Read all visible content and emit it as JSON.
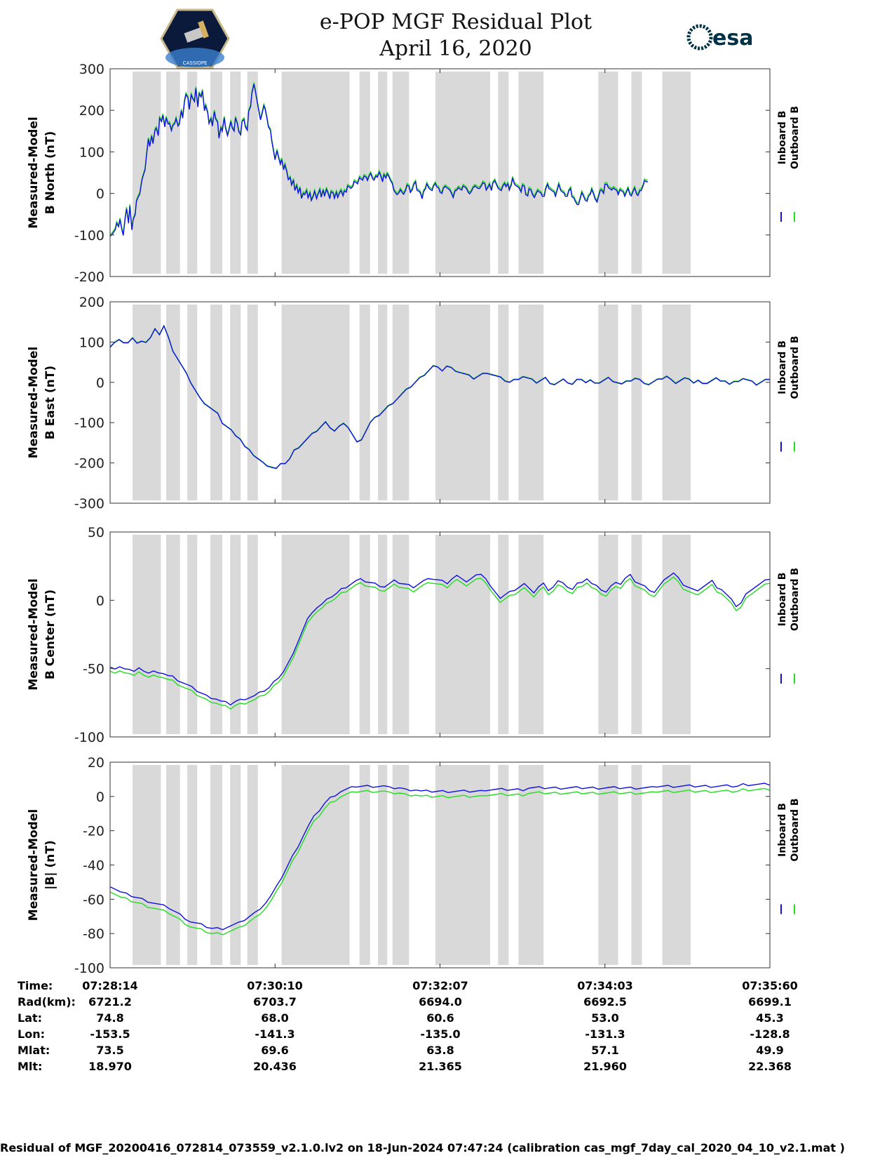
{
  "header": {
    "title_line1": "e-POP MGF Residual Plot",
    "title_line2": "April 16, 2020",
    "logo_left": "CASSIOPE",
    "logo_right": "esa"
  },
  "colors": {
    "inboard": "#1010e0",
    "outboard": "#22dd22",
    "shade": "#d9d9d9"
  },
  "chart_data": [
    {
      "type": "line",
      "ylabel_line1": "Measured-Model",
      "ylabel_line2": "B North (nT)",
      "ylim": [
        -200,
        300
      ],
      "yticks": [
        -200,
        -100,
        0,
        100,
        200,
        300
      ],
      "legend": [
        "Inboard B",
        "Outboard B"
      ],
      "x_minutes": [
        0,
        0.3,
        0.5,
        0.8,
        1.0,
        1.3,
        1.5,
        1.8,
        2.0,
        2.3,
        2.5,
        2.8,
        3.0,
        3.3,
        3.5,
        3.8,
        4.0,
        4.3,
        4.5,
        4.8,
        5.0,
        5.3,
        5.5,
        5.8,
        6.0,
        6.3,
        6.5,
        6.8,
        7.0,
        7.3,
        7.5,
        7.8,
        8.0,
        8.3,
        8.5,
        8.8,
        9.0,
        9.3,
        9.5,
        9.8,
        10.0,
        10.3,
        10.5,
        10.8,
        11.0,
        11.3,
        11.5,
        11.8,
        12.0,
        12.3,
        12.5,
        12.8,
        13.0,
        13.3,
        13.5,
        13.8,
        14.0,
        14.3,
        14.5,
        14.8,
        15.0,
        15.3,
        15.5,
        15.8,
        16.0,
        16.3,
        16.5,
        16.8,
        17.0,
        17.3,
        17.5,
        17.8,
        18.0,
        18.3,
        18.5,
        18.8,
        19.0,
        19.3,
        19.5,
        19.8,
        20.0,
        20.3,
        20.5,
        20.8,
        21.0,
        21.3,
        21.5,
        21.8,
        22.0,
        22.3,
        22.5,
        22.8,
        23.0,
        23.3,
        23.5,
        23.8,
        24.0,
        24.3,
        24.5,
        24.8,
        25.0,
        25.3,
        25.5,
        25.8,
        26.0,
        26.3,
        26.5,
        26.8,
        27.0,
        27.3,
        27.5,
        27.8,
        28.0,
        28.3,
        28.5,
        28.8,
        29.0,
        29.3,
        29.5,
        29.8,
        30.0,
        30.3,
        30.5,
        30.8,
        31.0,
        31.3,
        31.5,
        31.8,
        32.0,
        32.3,
        32.5,
        32.8,
        33.0,
        33.3,
        33.5,
        33.8,
        34.0,
        34.3,
        34.5,
        34.8,
        35.0,
        35.3,
        35.5,
        35.8,
        36.0,
        36.3,
        36.5,
        36.8,
        37.0,
        37.3,
        37.5,
        37.8,
        38.0,
        38.3,
        38.5,
        38.8,
        39.0,
        39.3,
        39.5,
        39.8,
        40.0,
        40.3,
        40.5,
        40.8,
        41.0,
        41.3,
        41.5,
        41.8,
        42.0,
        42.3,
        42.5,
        42.8,
        43.0,
        43.3,
        43.5,
        43.8,
        44.0,
        44.3,
        44.5,
        44.8,
        45.0,
        45.3,
        45.5,
        45.8,
        46.0,
        46.3,
        46.5,
        46.8,
        47.0,
        47.3,
        47.5,
        47.8,
        48.0,
        48.3,
        48.5,
        48.8,
        49.0,
        49.3,
        49.5,
        49.8,
        50.0,
        50.3,
        50.5,
        50.8,
        51.0,
        51.3,
        51.5,
        51.8,
        52.0,
        52.3,
        52.5,
        52.8,
        53.0,
        53.3,
        53.5,
        53.8,
        54.0,
        54.3,
        54.5,
        54.8,
        55.0,
        55.3,
        55.5,
        55.8,
        56.0,
        56.3,
        56.5,
        56.8,
        57.0,
        57.3,
        57.5,
        57.8,
        58.0,
        58.3,
        58.5,
        58.8,
        59.0,
        59.3,
        59.5,
        59.8,
        60.0,
        60.3,
        60.5,
        60.8,
        61.0,
        61.3,
        61.5,
        61.8,
        62.0,
        62.3,
        62.5,
        62.8,
        63.0,
        63.3,
        63.5,
        63.8,
        64.0,
        64.3,
        64.5,
        64.8,
        65.0,
        65.3,
        65.5,
        65.8,
        66.0,
        66.3,
        66.5,
        66.8,
        67.0,
        67.3,
        67.5,
        67.8,
        68.0,
        68.3,
        68.5,
        68.8,
        69.0,
        69.3,
        69.5,
        69.8,
        70.0,
        70.3,
        70.5,
        70.8,
        71.0,
        71.3,
        71.5,
        71.8,
        72.0,
        72.3,
        72.5,
        72.8,
        73.0,
        73.3,
        73.5,
        73.8,
        74.0,
        74.3,
        74.5,
        74.8,
        75.0,
        75.3,
        75.5,
        75.8,
        76.0,
        76.3,
        76.5,
        76.8,
        77.0,
        77.3,
        77.5,
        77.8,
        78.0,
        78.3,
        78.5,
        78.8,
        79.0,
        79.3,
        79.5,
        79.8,
        80.0,
        80.3,
        80.5,
        80.8,
        81.0,
        81.3,
        81.5,
        81.8,
        82.0,
        82.3,
        82.5,
        82.8,
        83.0,
        83.3,
        83.5,
        83.8,
        84.0,
        84.3,
        84.5,
        84.8,
        85.0,
        85.3,
        85.5,
        85.8,
        86.0,
        86.3,
        86.5,
        86.8,
        87.0,
        87.3,
        87.5,
        87.8,
        88.0,
        88.3,
        88.5,
        88.8,
        89.0,
        89.3,
        89.5,
        89.8,
        90.0,
        90.3,
        90.5,
        90.8,
        91.0,
        91.3,
        91.5,
        91.8,
        92.0,
        92.3,
        92.5,
        92.8,
        93.0,
        93.3,
        93.5,
        93.8,
        94.0,
        94.3,
        94.5,
        94.8,
        95.0,
        95.3,
        95.5,
        95.8,
        96.0,
        96.3,
        96.5,
        96.8,
        97.0,
        97.3,
        97.5,
        97.8,
        98.0,
        98.3,
        98.5,
        98.8,
        99.0,
        99.3,
        99.5,
        99.8,
        100.0
      ],
      "inboard": [
        -100,
        -98,
        -95,
        -90,
        -70,
        -80,
        -65,
        -85,
        -100,
        -60,
        -40,
        -70,
        -30,
        -90,
        -60,
        -50,
        -20,
        -10,
        0,
        30,
        40,
        60,
        90,
        130,
        110,
        140,
        120,
        150,
        160,
        140,
        180,
        170,
        190,
        160,
        180,
        170,
        170,
        150,
        160,
        170,
        180,
        160,
        170,
        200,
        180,
        220,
        240,
        230,
        200,
        240,
        230,
        220,
        250,
        210,
        240,
        230,
        250,
        200,
        210,
        190,
        170,
        180,
        160,
        200,
        180,
        170,
        130,
        160,
        150,
        180,
        160,
        140,
        150,
        170,
        160,
        150,
        180,
        170,
        150,
        140,
        170,
        180,
        160,
        150,
        200,
        210,
        240,
        260,
        250,
        220,
        200,
        180,
        190,
        210,
        200,
        180,
        160,
        150,
        130,
        100,
        80,
        100,
        90,
        70,
        80,
        60,
        70,
        50,
        30,
        40,
        20,
        30,
        10,
        20,
        0,
        10,
        -10,
        0,
        -5,
        10,
        -10,
        0,
        -20,
        -5,
        5,
        -15,
        0,
        10,
        -10,
        5,
        -5,
        10,
        0,
        -10,
        5,
        0,
        -15,
        5,
        -10,
        0,
        10,
        -5,
        5,
        0,
        20,
        15,
        10,
        20,
        30,
        25,
        20,
        40,
        35,
        30,
        45,
        40,
        30,
        40,
        50,
        35,
        30,
        45,
        40,
        50,
        40,
        30,
        45,
        35,
        50,
        40,
        30,
        20,
        10,
        0,
        -5,
        5,
        10,
        0,
        -5,
        10,
        20,
        15,
        5,
        10,
        20,
        25,
        10,
        5,
        0,
        -10,
        5,
        10,
        20,
        15,
        10,
        5,
        20,
        25,
        15,
        10,
        5,
        0,
        10,
        20,
        15,
        10,
        5,
        0,
        -10,
        5,
        10,
        15,
        10,
        5,
        20,
        15,
        10,
        5,
        0,
        5,
        10,
        20,
        15,
        10,
        15,
        20,
        25,
        20,
        10,
        15,
        20,
        10,
        25,
        30,
        20,
        15,
        10,
        5,
        20,
        25,
        15,
        20,
        10,
        20,
        35,
        25,
        20,
        15,
        10,
        5,
        20,
        15,
        0,
        -5,
        10,
        5,
        0,
        -10,
        -5,
        10,
        5,
        0,
        -10,
        -5,
        10,
        20,
        15,
        10,
        5,
        0,
        -5,
        10,
        20,
        10,
        5,
        0,
        -10,
        -5,
        5,
        10,
        -5,
        -10,
        -20,
        -30,
        -25,
        -10,
        0,
        -5,
        -15,
        -20,
        -10,
        0,
        10,
        -5,
        -10,
        -20,
        -10,
        5,
        10,
        0,
        20,
        25,
        15,
        10,
        5,
        15,
        10,
        5,
        0,
        10,
        5,
        0,
        -5,
        5,
        10,
        0,
        -5,
        5,
        10,
        0,
        -5,
        5,
        10,
        20,
        30,
        25,
        30
      ],
      "outboard_offset": 4
    },
    {
      "type": "line",
      "ylabel_line1": "Measured-Model",
      "ylabel_line2": "B East (nT)",
      "ylim": [
        -300,
        200
      ],
      "yticks": [
        -300,
        -200,
        -100,
        0,
        100,
        200
      ],
      "legend": [
        "Inboard B",
        "Outboard B"
      ],
      "inboard": [
        90,
        100,
        105,
        95,
        100,
        110,
        95,
        105,
        100,
        110,
        130,
        120,
        140,
        110,
        80,
        60,
        40,
        20,
        0,
        -20,
        -40,
        -50,
        -60,
        -70,
        -80,
        -100,
        -110,
        -120,
        -130,
        -140,
        -160,
        -170,
        -180,
        -190,
        -200,
        -205,
        -210,
        -215,
        -205,
        -200,
        -190,
        -170,
        -160,
        -150,
        -140,
        -130,
        -120,
        -110,
        -100,
        -110,
        -120,
        -110,
        -105,
        -110,
        -130,
        -150,
        -140,
        -120,
        -100,
        -90,
        -80,
        -70,
        -60,
        -50,
        -40,
        -30,
        -20,
        -10,
        0,
        10,
        20,
        30,
        40,
        35,
        30,
        40,
        35,
        30,
        25,
        20,
        15,
        10,
        15,
        20,
        25,
        20,
        15,
        10,
        5,
        0,
        5,
        10,
        15,
        10,
        5,
        0,
        5,
        10,
        0,
        -5,
        0,
        5,
        0,
        -5,
        5,
        10,
        0,
        5,
        -5,
        0,
        5,
        10,
        5,
        0,
        -5,
        0,
        5,
        10,
        5,
        0,
        -5,
        0,
        5,
        10,
        15,
        5,
        0,
        5,
        10,
        5,
        0,
        5,
        -5,
        0,
        5,
        10,
        0,
        5,
        -5,
        0,
        5,
        10,
        5,
        0,
        -5,
        0,
        5,
        10
      ],
      "outboard_offset": 1
    },
    {
      "type": "line",
      "ylabel_line1": "Measured-Model",
      "ylabel_line2": "B Center (nT)",
      "ylim": [
        -100,
        50
      ],
      "yticks": [
        -100,
        -50,
        0,
        50
      ],
      "legend": [
        "Inboard B",
        "Outboard B"
      ],
      "inboard": [
        -48,
        -50,
        -49,
        -51,
        -50,
        -52,
        -50,
        -51,
        -53,
        -52,
        -54,
        -53,
        -55,
        -56,
        -58,
        -60,
        -62,
        -64,
        -66,
        -68,
        -70,
        -71,
        -72,
        -74,
        -75,
        -76,
        -74,
        -73,
        -72,
        -71,
        -70,
        -68,
        -66,
        -64,
        -60,
        -56,
        -52,
        -46,
        -40,
        -30,
        -22,
        -14,
        -8,
        -5,
        -3,
        0,
        3,
        5,
        8,
        10,
        12,
        14,
        15,
        14,
        13,
        12,
        11,
        10,
        12,
        14,
        13,
        12,
        11,
        10,
        12,
        14,
        15,
        16,
        15,
        14,
        13,
        16,
        18,
        15,
        14,
        16,
        18,
        20,
        16,
        10,
        5,
        2,
        4,
        6,
        8,
        10,
        12,
        8,
        6,
        10,
        12,
        8,
        10,
        14,
        12,
        10,
        8,
        12,
        14,
        16,
        12,
        10,
        8,
        6,
        10,
        14,
        12,
        16,
        18,
        14,
        12,
        10,
        8,
        6,
        10,
        14,
        18,
        20,
        16,
        12,
        10,
        8,
        6,
        10,
        12,
        14,
        10,
        8,
        4,
        0,
        -4,
        -2,
        4,
        8,
        10,
        12,
        14,
        16
      ],
      "outboard_offset": -3
    },
    {
      "type": "line",
      "ylabel_line1": "Measured-Model",
      "ylabel_line2": "|B| (nT)",
      "ylim": [
        -100,
        20
      ],
      "yticks": [
        -100,
        -80,
        -60,
        -40,
        -20,
        0,
        20
      ],
      "legend": [
        "Inboard B",
        "Outboard B"
      ],
      "inboard": [
        -52,
        -54,
        -56,
        -57,
        -58,
        -59,
        -60,
        -61,
        -62,
        -63,
        -64,
        -65,
        -67,
        -69,
        -71,
        -73,
        -74,
        -75,
        -76,
        -77,
        -77,
        -77,
        -76,
        -75,
        -74,
        -72,
        -70,
        -68,
        -65,
        -62,
        -58,
        -53,
        -47,
        -41,
        -35,
        -29,
        -23,
        -17,
        -12,
        -8,
        -4,
        -1,
        1,
        3,
        4,
        5,
        6,
        6,
        6,
        6,
        6,
        6,
        5,
        5,
        5,
        4,
        4,
        4,
        3,
        3,
        3,
        3,
        3,
        3,
        3,
        3,
        3,
        3,
        3,
        3,
        4,
        4,
        4,
        4,
        4,
        4,
        4,
        4,
        5,
        5,
        5,
        5,
        5,
        5,
        5,
        5,
        5,
        5,
        5,
        5,
        5,
        5,
        5,
        5,
        5,
        5,
        5,
        5,
        5,
        5,
        5,
        5,
        6,
        6,
        6,
        6,
        6,
        6,
        6,
        6,
        6,
        6,
        6,
        6,
        6,
        6,
        6,
        6,
        7,
        7,
        7,
        7,
        7,
        7
      ],
      "outboard_offset": -3
    }
  ],
  "x_ticks": [
    "07:28:14",
    "07:30:10",
    "07:32:07",
    "07:34:03",
    "07:35:60"
  ],
  "gray_bands_minutes": [
    [
      3.4,
      7.7
    ],
    [
      8.5,
      10.6
    ],
    [
      11.7,
      13.2
    ],
    [
      15.2,
      17.0
    ],
    [
      18.2,
      19.8
    ],
    [
      20.8,
      22.4
    ],
    [
      26.0,
      36.3
    ],
    [
      37.8,
      39.4
    ],
    [
      40.6,
      42.0
    ],
    [
      42.8,
      45.3
    ],
    [
      49.3,
      57.6
    ],
    [
      58.8,
      60.4
    ],
    [
      61.9,
      65.7
    ],
    [
      74.0,
      77.0
    ],
    [
      79.0,
      80.6
    ],
    [
      83.7,
      88.0
    ]
  ],
  "ephemeris": {
    "labels": [
      "Time:",
      "Rad(km):",
      "Lat:",
      "Lon:",
      "Mlat:",
      "Mlt:"
    ],
    "columns": [
      [
        "07:28:14",
        "6721.2",
        "74.8",
        "-153.5",
        "73.5",
        "18.970"
      ],
      [
        "07:30:10",
        "6703.7",
        "68.0",
        "-141.3",
        "69.6",
        "20.436"
      ],
      [
        "07:32:07",
        "6694.0",
        "60.6",
        "-135.0",
        "63.8",
        "21.365"
      ],
      [
        "07:34:03",
        "6692.5",
        "53.0",
        "-131.3",
        "57.1",
        "21.960"
      ],
      [
        "07:35:60",
        "6699.1",
        "45.3",
        "-128.8",
        "49.9",
        "22.368"
      ]
    ]
  },
  "footer": "Residual of MGF_20200416_072814_073559_v2.1.0.lv2 on 18-Jun-2024 07:47:24 (calibration cas_mgf_7day_cal_2020_04_10_v2.1.mat )"
}
